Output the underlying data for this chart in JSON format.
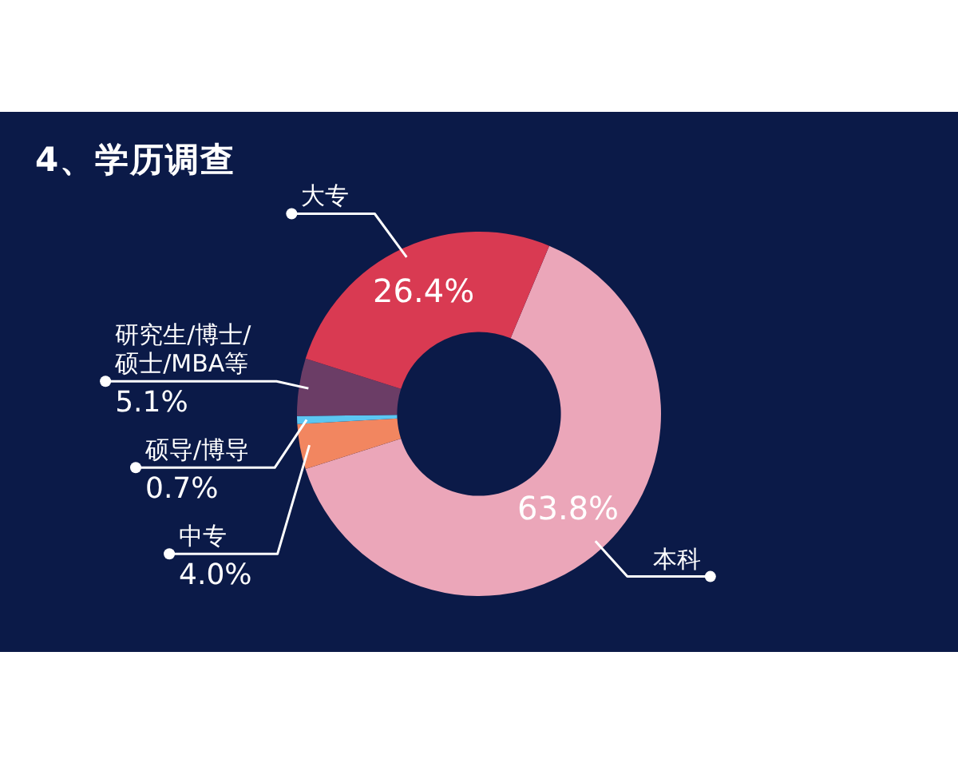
{
  "chart_data": {
    "type": "donut",
    "title": "4、学历调查",
    "categories": [
      "本科",
      "中专",
      "硕导/博导",
      "研究生/博士/硕士/MBA等",
      "大专"
    ],
    "values": [
      63.8,
      4.0,
      0.7,
      5.1,
      26.4
    ],
    "value_labels": [
      "63.8%",
      "4.0%",
      "0.7%",
      "5.1%",
      "26.4%"
    ],
    "colors": [
      "#eba6b9",
      "#f28660",
      "#5cc6f2",
      "#6b3d66",
      "#d93a52"
    ]
  }
}
